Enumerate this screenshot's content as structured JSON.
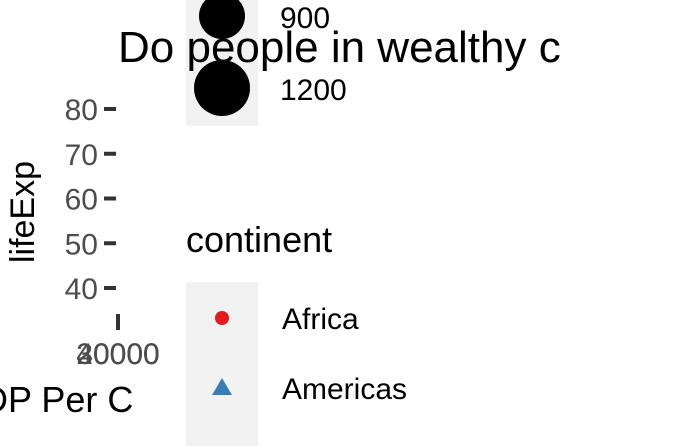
{
  "chart_data": {
    "type": "scatter",
    "title": "Do people in wealthy c",
    "xlabel": "DP Per C",
    "ylabel": "lifeExp",
    "y_ticks": [
      40,
      50,
      60,
      70,
      80
    ],
    "x_tick_labels": [
      "40000",
      "30000",
      "20000"
    ],
    "legend": {
      "placement": "right",
      "size_entries": [
        "900",
        "1200"
      ],
      "continent": {
        "title": "continent",
        "entries": [
          {
            "name": "Africa",
            "shape": "circle",
            "color": "#E41A1C"
          },
          {
            "name": "Americas",
            "shape": "triangle",
            "color": "#377EB8"
          }
        ]
      }
    },
    "colors": {
      "legend_key_bg": "#F2F2F2",
      "text": "#000000",
      "tick_text": "#4D4D4D"
    }
  }
}
